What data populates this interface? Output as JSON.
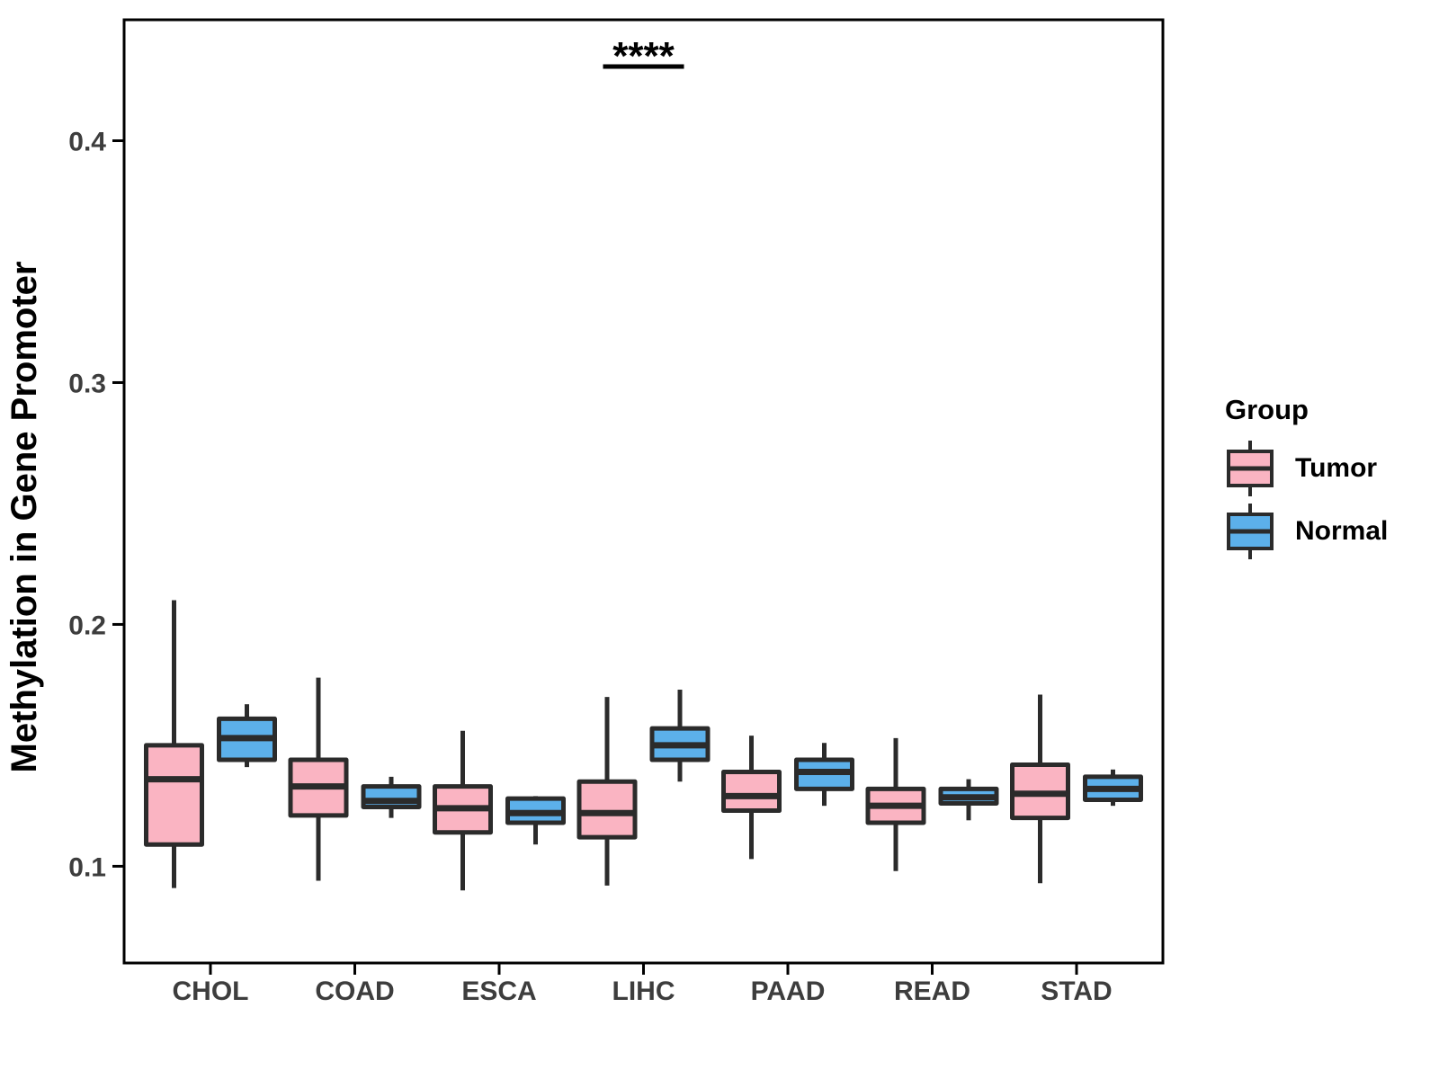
{
  "legend": {
    "title": "Group",
    "items": [
      {
        "label": "Tumor",
        "color": "#FAB4C2"
      },
      {
        "label": "Normal",
        "color": "#5CB0EA"
      }
    ]
  },
  "chart_data": {
    "type": "boxplot",
    "title": "",
    "xlabel": "",
    "ylabel": "Methylation in Gene Promoter",
    "categories": [
      "CHOL",
      "COAD",
      "ESCA",
      "LIHC",
      "PAAD",
      "READ",
      "STAD"
    ],
    "groups": [
      "Tumor",
      "Normal"
    ],
    "ylim": [
      0.06,
      0.45
    ],
    "y_ticks": [
      0.1,
      0.2,
      0.3,
      0.4
    ],
    "y_tick_labels": [
      "0.1",
      "0.2",
      "0.3",
      "0.4"
    ],
    "grid": false,
    "legend_position": "right",
    "colors": {
      "Tumor": "#FAB4C2",
      "Normal": "#5CB0EA",
      "stroke": "#2B2B2B",
      "axis_text": "#3D3D3D",
      "axis_title": "#000000"
    },
    "series": [
      {
        "name": "Tumor",
        "boxes": [
          {
            "category": "CHOL",
            "whisker_low": 0.091,
            "q1": 0.109,
            "median": 0.136,
            "q3": 0.15,
            "whisker_high": 0.21
          },
          {
            "category": "COAD",
            "whisker_low": 0.094,
            "q1": 0.121,
            "median": 0.133,
            "q3": 0.144,
            "whisker_high": 0.178
          },
          {
            "category": "ESCA",
            "whisker_low": 0.09,
            "q1": 0.114,
            "median": 0.124,
            "q3": 0.133,
            "whisker_high": 0.156
          },
          {
            "category": "LIHC",
            "whisker_low": 0.092,
            "q1": 0.112,
            "median": 0.122,
            "q3": 0.135,
            "whisker_high": 0.17
          },
          {
            "category": "PAAD",
            "whisker_low": 0.103,
            "q1": 0.123,
            "median": 0.129,
            "q3": 0.139,
            "whisker_high": 0.154
          },
          {
            "category": "READ",
            "whisker_low": 0.098,
            "q1": 0.118,
            "median": 0.125,
            "q3": 0.132,
            "whisker_high": 0.153
          },
          {
            "category": "STAD",
            "whisker_low": 0.093,
            "q1": 0.12,
            "median": 0.13,
            "q3": 0.142,
            "whisker_high": 0.171
          }
        ]
      },
      {
        "name": "Normal",
        "boxes": [
          {
            "category": "CHOL",
            "whisker_low": 0.141,
            "q1": 0.144,
            "median": 0.153,
            "q3": 0.161,
            "whisker_high": 0.167
          },
          {
            "category": "COAD",
            "whisker_low": 0.12,
            "q1": 0.1245,
            "median": 0.127,
            "q3": 0.133,
            "whisker_high": 0.137
          },
          {
            "category": "ESCA",
            "whisker_low": 0.109,
            "q1": 0.118,
            "median": 0.122,
            "q3": 0.128,
            "whisker_high": 0.129
          },
          {
            "category": "LIHC",
            "whisker_low": 0.135,
            "q1": 0.144,
            "median": 0.15,
            "q3": 0.157,
            "whisker_high": 0.173
          },
          {
            "category": "PAAD",
            "whisker_low": 0.125,
            "q1": 0.132,
            "median": 0.139,
            "q3": 0.144,
            "whisker_high": 0.151
          },
          {
            "category": "READ",
            "whisker_low": 0.119,
            "q1": 0.126,
            "median": 0.1285,
            "q3": 0.132,
            "whisker_high": 0.136
          },
          {
            "category": "STAD",
            "whisker_low": 0.125,
            "q1": 0.1275,
            "median": 0.132,
            "q3": 0.137,
            "whisker_high": 0.14
          }
        ]
      }
    ],
    "annotations": [
      {
        "label": "****",
        "category": "LIHC",
        "note": "significance between Tumor and Normal at LIHC"
      }
    ]
  }
}
